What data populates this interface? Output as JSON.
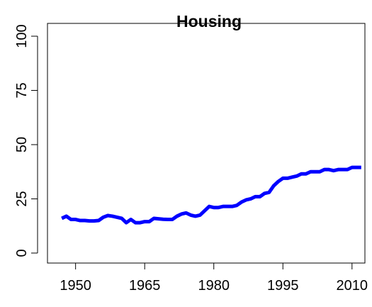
{
  "chart_data": {
    "type": "line",
    "title": "Housing",
    "x": [
      1947,
      1948,
      1949,
      1950,
      1951,
      1952,
      1953,
      1954,
      1955,
      1956,
      1957,
      1958,
      1959,
      1960,
      1961,
      1962,
      1963,
      1964,
      1965,
      1966,
      1967,
      1968,
      1969,
      1970,
      1971,
      1972,
      1973,
      1974,
      1975,
      1976,
      1977,
      1978,
      1979,
      1980,
      1981,
      1982,
      1983,
      1984,
      1985,
      1986,
      1987,
      1988,
      1989,
      1990,
      1991,
      1992,
      1993,
      1994,
      1995,
      1996,
      1997,
      1998,
      1999,
      2000,
      2001,
      2002,
      2003,
      2004,
      2005,
      2006,
      2007,
      2008,
      2009,
      2010,
      2011,
      2012
    ],
    "series": [
      {
        "color": "#0000ff",
        "values": [
          16,
          17,
          15.5,
          15.5,
          15,
          15,
          14.8,
          14.8,
          15,
          16.5,
          17.3,
          17,
          16.5,
          16,
          14,
          15.5,
          14,
          14,
          14.5,
          14.5,
          16,
          15.8,
          15.6,
          15.5,
          15.5,
          17,
          18,
          18.5,
          17.5,
          17,
          17.5,
          19.5,
          21.5,
          21,
          21,
          21.5,
          21.5,
          21.5,
          22,
          23.5,
          24.5,
          25,
          26,
          26,
          27.5,
          28,
          31,
          33,
          34.5,
          34.5,
          35,
          35.5,
          36.5,
          36.5,
          37.5,
          37.5,
          37.5,
          38.5,
          38.5,
          38,
          38.5,
          38.5,
          38.5,
          39.5,
          39.5,
          39.5
        ]
      }
    ],
    "xlim": [
      1943.9,
      2012.8
    ],
    "xticks": [
      1950,
      1965,
      1980,
      1995,
      2010
    ],
    "ylim": [
      -4.6,
      105.9
    ],
    "yticks": [
      0,
      25,
      50,
      75,
      100
    ]
  }
}
